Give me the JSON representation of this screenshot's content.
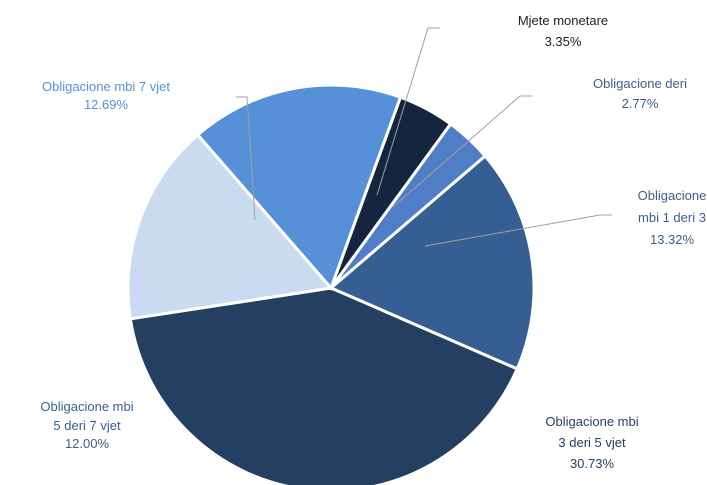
{
  "chart_data": {
    "type": "pie",
    "categories": [
      "Mjete monetare",
      "Obligacione deri",
      "Obligacione mbi 1 deri 3",
      "Obligacione mbi 3 deri 5 vjet",
      "Obligacione mbi 5 deri 7 vjet",
      "Obligacione mbi 7 vjet"
    ],
    "values": [
      3.35,
      2.77,
      13.32,
      30.73,
      12.0,
      12.69
    ],
    "value_labels": [
      "3.35%",
      "2.77%",
      "13.32%",
      "30.73%",
      "12.00%",
      "12.69%"
    ],
    "colors": [
      "#16253f",
      "#4f7ec6",
      "#355f93",
      "#253f63",
      "#c9daf1",
      "#5590d9"
    ]
  }
}
